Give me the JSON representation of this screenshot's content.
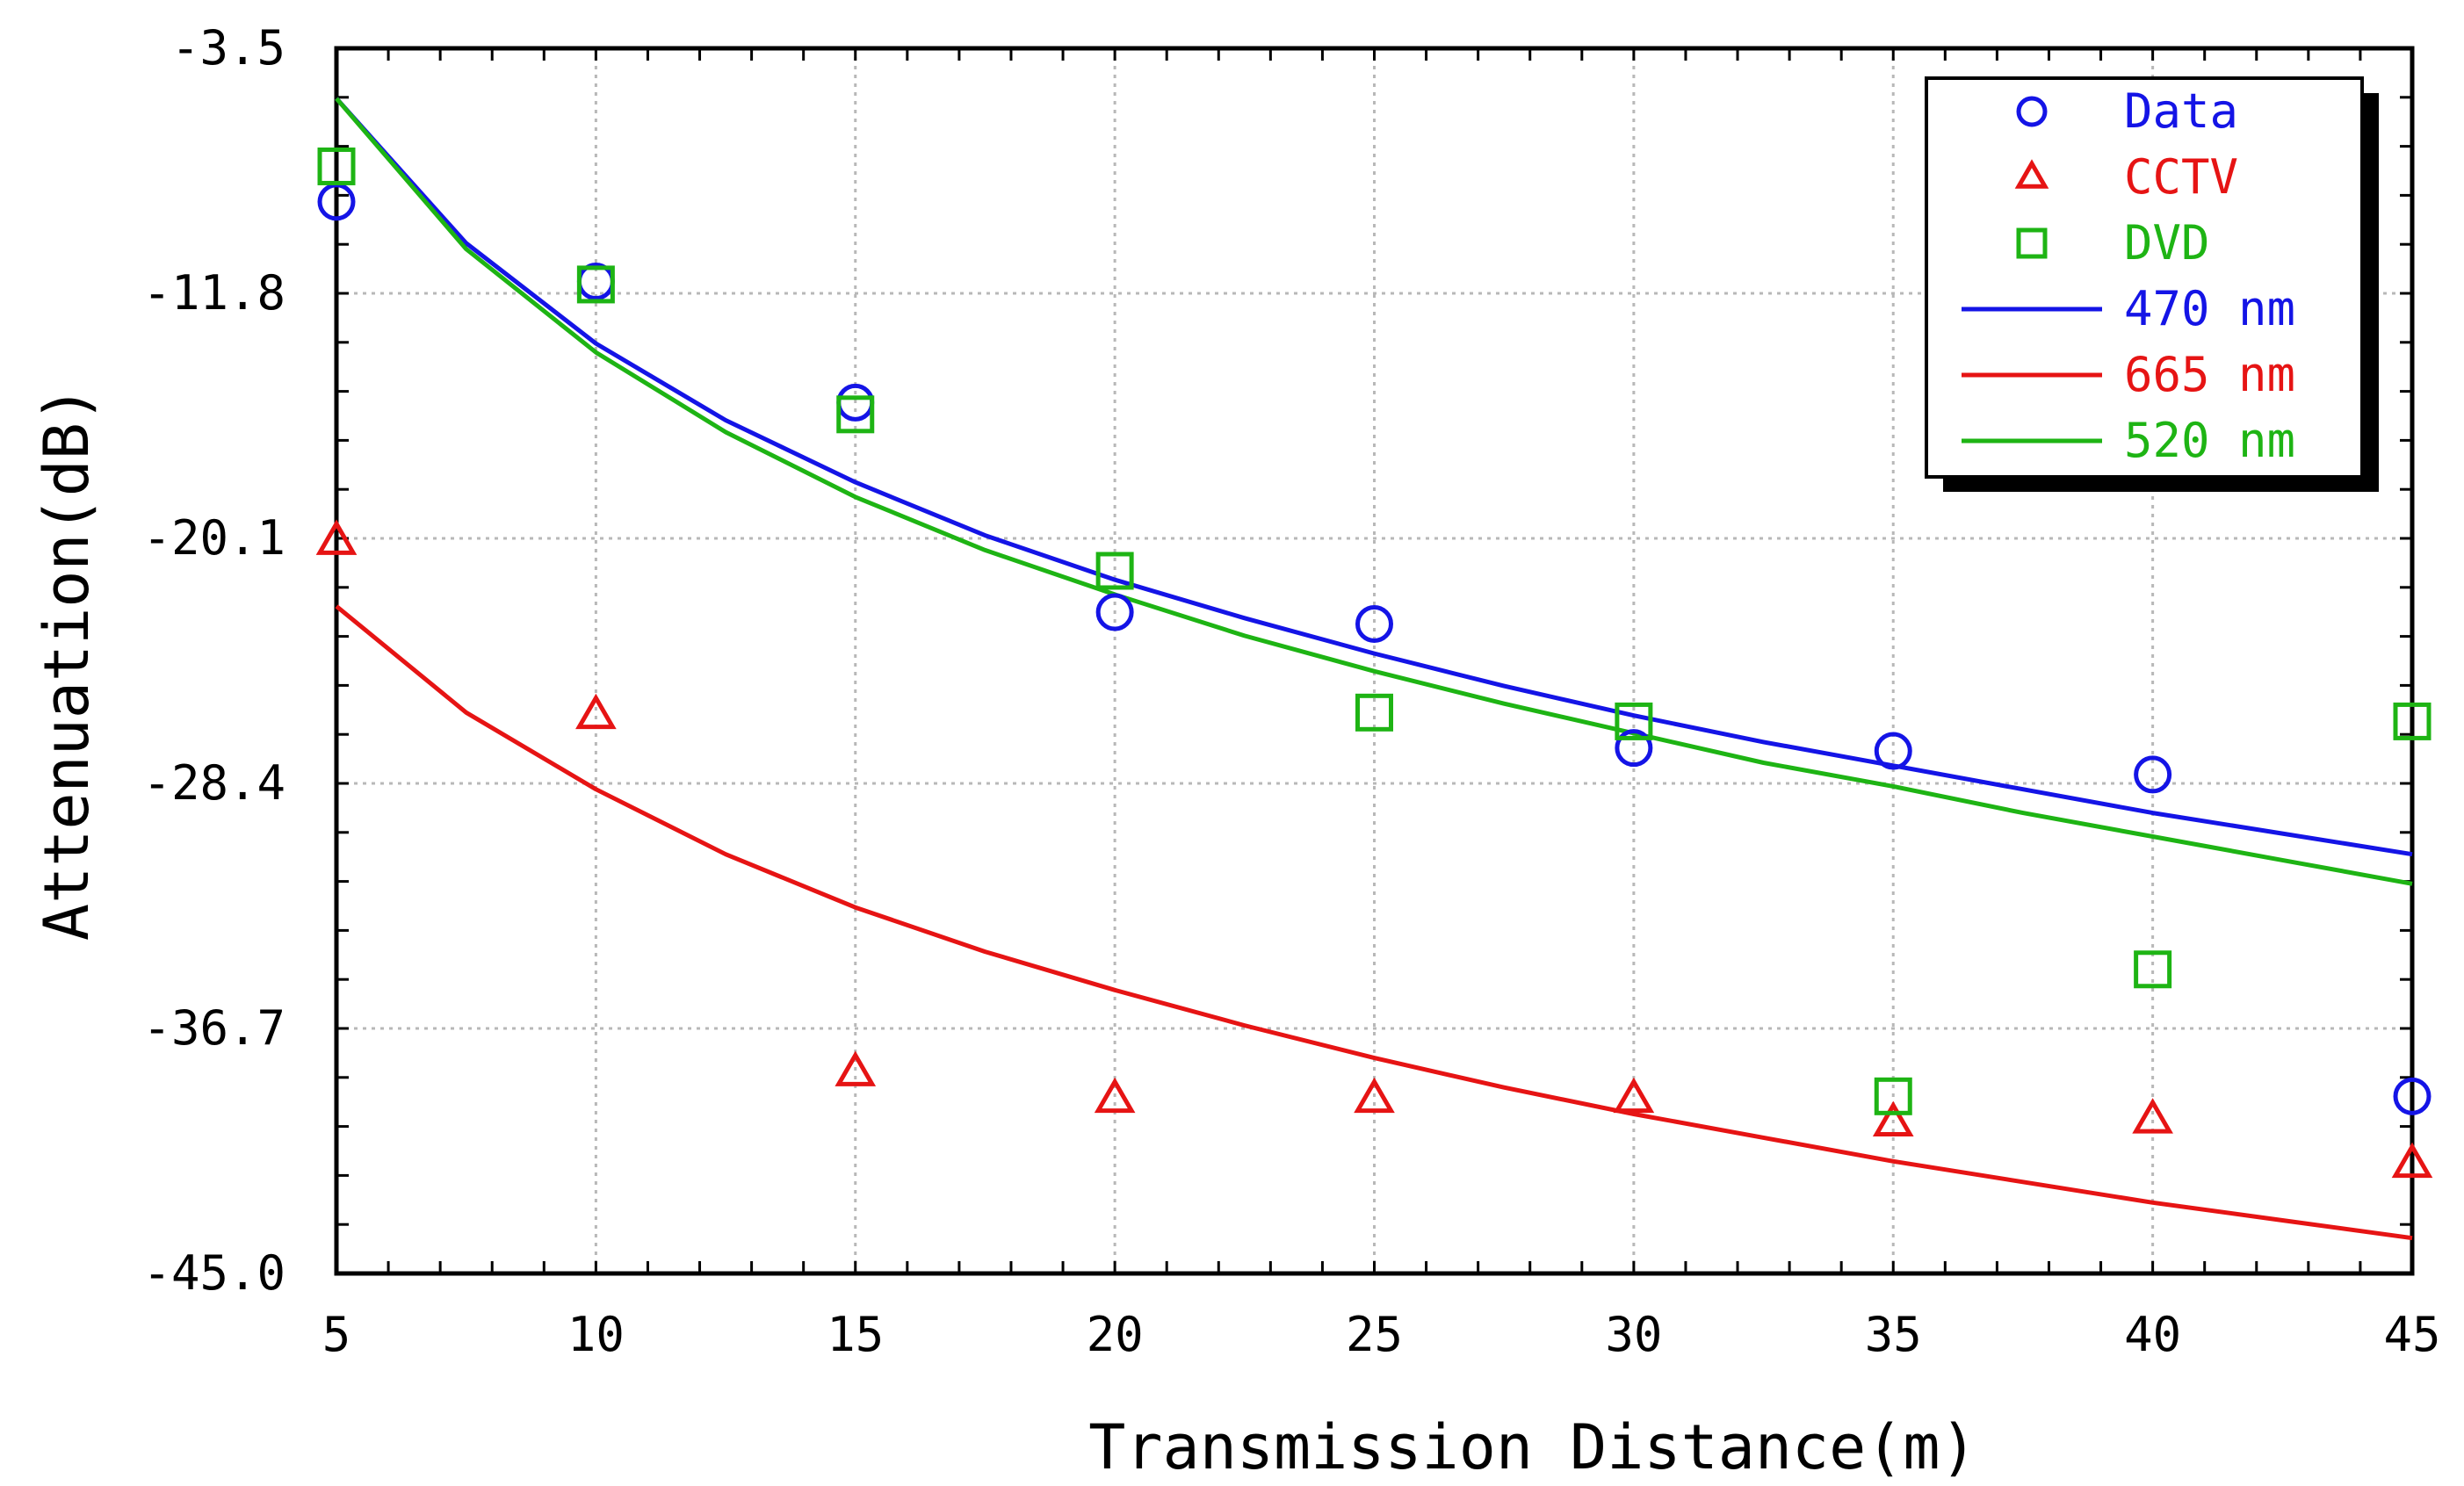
{
  "chart_data": {
    "type": "scatter",
    "title": "",
    "xlabel": "Transmission Distance(m)",
    "ylabel": "Attenuation(dB)",
    "xlim": [
      5,
      45
    ],
    "ylim": [
      -45.0,
      -3.5
    ],
    "x_ticks": [
      "5",
      "10",
      "15",
      "20",
      "25",
      "30",
      "35",
      "40",
      "45"
    ],
    "y_ticks": [
      "-3.5",
      "-11.8",
      "-20.1",
      "-28.4",
      "-36.7",
      "-45.0"
    ],
    "grid": true,
    "legend_position": "top-right",
    "series": [
      {
        "name": "Data",
        "kind": "points",
        "marker": "circle",
        "color": "#1414e6",
        "x": [
          5,
          10,
          15,
          20,
          25,
          30,
          35,
          40,
          45
        ],
        "y": [
          -8.7,
          -11.4,
          -15.5,
          -22.6,
          -23.0,
          -27.2,
          -27.3,
          -28.1,
          -39.0
        ]
      },
      {
        "name": "CCTV",
        "kind": "points",
        "marker": "triangle",
        "color": "#e61414",
        "x": [
          5,
          10,
          15,
          20,
          25,
          30,
          35,
          40,
          45
        ],
        "y": [
          -20.2,
          -26.1,
          -38.2,
          -39.1,
          -39.1,
          -39.1,
          -39.9,
          -39.8,
          -41.3
        ]
      },
      {
        "name": "DVD",
        "kind": "points",
        "marker": "square",
        "color": "#1eb414",
        "x": [
          5,
          10,
          15,
          20,
          25,
          30,
          35,
          40,
          45
        ],
        "y": [
          -7.5,
          -11.5,
          -15.9,
          -21.2,
          -26.0,
          -26.3,
          -39.0,
          -34.7,
          -26.3
        ]
      },
      {
        "name": "470 nm",
        "kind": "line",
        "color": "#1414e6",
        "x": [
          5,
          7.5,
          10,
          12.5,
          15,
          17.5,
          20,
          22.5,
          25,
          27.5,
          30,
          32.5,
          35,
          37.5,
          40,
          42.5,
          45
        ],
        "y": [
          -5.2,
          -10.1,
          -13.5,
          -16.1,
          -18.2,
          -20.0,
          -21.5,
          -22.8,
          -24.0,
          -25.1,
          -26.1,
          -27.0,
          -27.8,
          -28.6,
          -29.4,
          -30.1,
          -30.8
        ]
      },
      {
        "name": "665 nm",
        "kind": "line",
        "color": "#e61414",
        "x": [
          5,
          7.5,
          10,
          12.5,
          15,
          17.5,
          20,
          22.5,
          25,
          27.5,
          30,
          32.5,
          35,
          37.5,
          40,
          42.5,
          45
        ],
        "y": [
          -22.4,
          -26.0,
          -28.6,
          -30.8,
          -32.6,
          -34.1,
          -35.4,
          -36.6,
          -37.7,
          -38.7,
          -39.6,
          -40.4,
          -41.2,
          -41.9,
          -42.6,
          -43.2,
          -43.8
        ]
      },
      {
        "name": "520 nm",
        "kind": "line",
        "color": "#1eb414",
        "x": [
          5,
          7.5,
          10,
          12.5,
          15,
          17.5,
          20,
          22.5,
          25,
          27.5,
          30,
          32.5,
          35,
          37.5,
          40,
          42.5,
          45
        ],
        "y": [
          -5.2,
          -10.3,
          -13.8,
          -16.5,
          -18.7,
          -20.5,
          -22.0,
          -23.4,
          -24.6,
          -25.7,
          -26.7,
          -27.7,
          -28.5,
          -29.4,
          -30.2,
          -31.0,
          -31.8
        ]
      }
    ]
  }
}
